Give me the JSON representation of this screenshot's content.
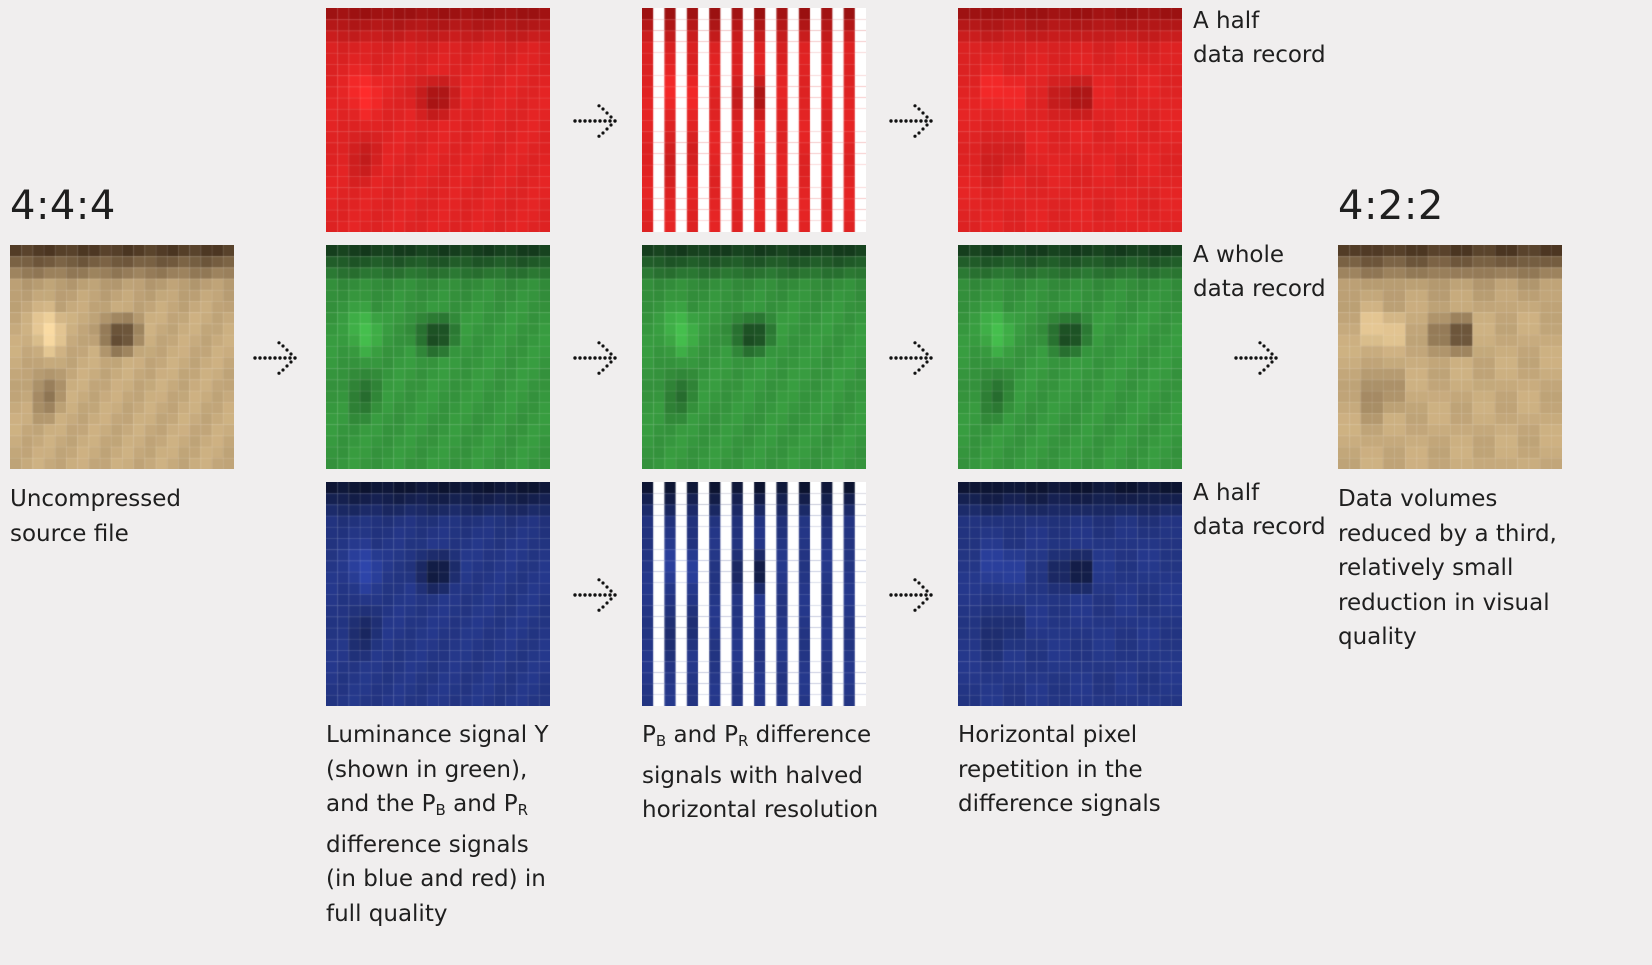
{
  "source": {
    "heading": "4:4:4",
    "caption": [
      "Uncompressed",
      "source file"
    ]
  },
  "result": {
    "heading": "4:2:2",
    "caption": [
      "Data volumes",
      "reduced by a third,",
      "relatively small",
      "reduction in visual",
      "quality"
    ]
  },
  "channels": [
    {
      "id": "red",
      "record_label": [
        "A half",
        "data record"
      ]
    },
    {
      "id": "green",
      "record_label": [
        "A whole",
        "data record"
      ]
    },
    {
      "id": "blue",
      "record_label": [
        "A half",
        "data record"
      ]
    }
  ],
  "captions": {
    "luminance": {
      "l1": "Luminance signal Y",
      "l2": "(shown in green),",
      "l3_a": "and the P",
      "l3_sub1": "B",
      "l3_b": " and P",
      "l3_sub2": "R",
      "l4": "difference signals",
      "l5": "(in blue and red) in",
      "l6": "full quality"
    },
    "halved": {
      "l1_a": "P",
      "l1_sub1": "B",
      "l1_b": " and P",
      "l1_sub2": "R",
      "l1_c": " difference",
      "l2": "signals with halved",
      "l3": "horizontal resolution"
    },
    "repetition": {
      "l1": "Horizontal pixel",
      "l2": "repetition in the",
      "l3": "difference signals"
    }
  },
  "icons": {
    "arrow": "dotted-right-arrow-icon"
  },
  "colors": {
    "background": "#f0eeee",
    "text": "#1f1f1f",
    "stripe_white": "#ffffff"
  }
}
